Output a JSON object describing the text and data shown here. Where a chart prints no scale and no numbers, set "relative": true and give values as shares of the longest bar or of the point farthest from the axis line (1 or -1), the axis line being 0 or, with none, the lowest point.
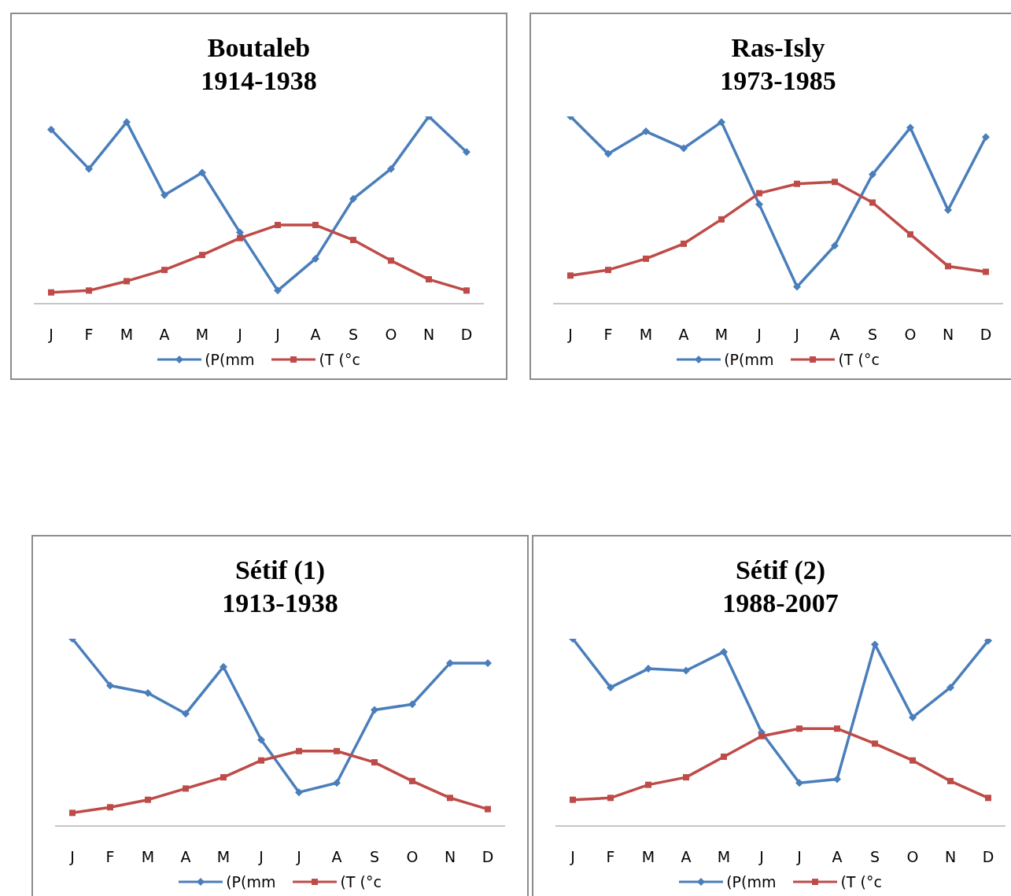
{
  "chart_data": [
    {
      "type": "line",
      "title": "Boutaleb\n1914-1938",
      "categories": [
        "J",
        "F",
        "M",
        "A",
        "M",
        "J",
        "J",
        "A",
        "S",
        "O",
        "N",
        "D"
      ],
      "relative": true,
      "grid": false,
      "legend": "bottom",
      "tick_labels": "x",
      "series": [
        {
          "name": "(P(mm",
          "color": "#4a7ebb",
          "marker": "diamond",
          "values": [
            0.93,
            0.72,
            0.97,
            0.58,
            0.7,
            0.38,
            0.07,
            0.24,
            0.56,
            0.72,
            1,
            0.81
          ]
        },
        {
          "name": "(T (°c",
          "color": "#be4b48",
          "marker": "square",
          "values": [
            0.06,
            0.07,
            0.12,
            0.18,
            0.26,
            0.35,
            0.42,
            0.42,
            0.34,
            0.23,
            0.13,
            0.07
          ]
        }
      ]
    },
    {
      "type": "line",
      "title": "Ras-Isly\n1973-1985",
      "categories": [
        "J",
        "F",
        "M",
        "A",
        "M",
        "J",
        "J",
        "A",
        "S",
        "O",
        "N",
        "D"
      ],
      "relative": true,
      "grid": false,
      "legend": "bottom",
      "tick_labels": "x",
      "series": [
        {
          "name": "(P(mm",
          "color": "#4a7ebb",
          "marker": "diamond",
          "values": [
            1,
            0.8,
            0.92,
            0.83,
            0.97,
            0.53,
            0.09,
            0.31,
            0.69,
            0.94,
            0.5,
            0.89
          ]
        },
        {
          "name": "(T (°c",
          "color": "#be4b48",
          "marker": "square",
          "values": [
            0.15,
            0.18,
            0.24,
            0.32,
            0.45,
            0.59,
            0.64,
            0.65,
            0.54,
            0.37,
            0.2,
            0.17
          ]
        }
      ]
    },
    {
      "type": "line",
      "title": "Sétif (1)\n1913-1938",
      "categories": [
        "J",
        "F",
        "M",
        "A",
        "M",
        "J",
        "J",
        "A",
        "S",
        "O",
        "N",
        "D"
      ],
      "relative": true,
      "grid": false,
      "legend": "bottom",
      "tick_labels": "x",
      "series": [
        {
          "name": "(P(mm",
          "color": "#4a7ebb",
          "marker": "diamond",
          "values": [
            1,
            0.75,
            0.71,
            0.6,
            0.85,
            0.46,
            0.18,
            0.23,
            0.62,
            0.65,
            0.87,
            0.87
          ]
        },
        {
          "name": "(T (°c",
          "color": "#be4b48",
          "marker": "square",
          "values": [
            0.07,
            0.1,
            0.14,
            0.2,
            0.26,
            0.35,
            0.4,
            0.4,
            0.34,
            0.24,
            0.15,
            0.09
          ]
        }
      ]
    },
    {
      "type": "line",
      "title": "Sétif (2)\n1988-2007",
      "categories": [
        "J",
        "F",
        "M",
        "A",
        "M",
        "J",
        "J",
        "A",
        "S",
        "O",
        "N",
        "D"
      ],
      "relative": true,
      "grid": false,
      "legend": "bottom",
      "tick_labels": "x",
      "series": [
        {
          "name": "(P(mm",
          "color": "#4a7ebb",
          "marker": "diamond",
          "values": [
            1,
            0.74,
            0.84,
            0.83,
            0.93,
            0.5,
            0.23,
            0.25,
            0.97,
            0.58,
            0.74,
            0.99
          ]
        },
        {
          "name": "(T (°c",
          "color": "#be4b48",
          "marker": "square",
          "values": [
            0.14,
            0.15,
            0.22,
            0.26,
            0.37,
            0.48,
            0.52,
            0.52,
            0.44,
            0.35,
            0.24,
            0.15
          ]
        }
      ]
    }
  ]
}
